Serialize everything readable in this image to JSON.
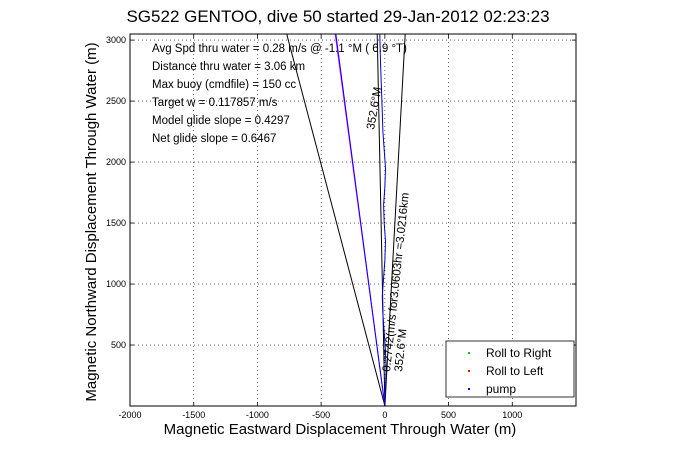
{
  "chart_data": {
    "type": "line",
    "title": "SG522 GENTOO, dive 50 started 29-Jan-2012 02:23:23",
    "xlabel": "Magnetic Eastward Displacement Through Water (m)",
    "ylabel": "Magnetic Northward Displacement Through Water (m)",
    "xlim": [
      -2000,
      1500
    ],
    "ylim": [
      0,
      3050
    ],
    "xticks": [
      -2000,
      -1500,
      -1000,
      -500,
      0,
      500,
      1000
    ],
    "yticks": [
      500,
      1000,
      1500,
      2000,
      2500,
      3000
    ],
    "grid": true,
    "legend_position": "bottom-right",
    "annotations": [
      "Avg Spd thru water =  0.28 m/s @   -1.1   °M (  6.9 °T)",
      "Distance thru water =  3.06 km",
      "Max buoy (cmdfile) = 150 cc",
      "Target w = 0.117857 m/s",
      "Model glide slope = 0.4297",
      "Net glide slope = 0.6467"
    ],
    "rotated_labels": {
      "heading_upper": "352.6°M",
      "track": "0.2742(m/s for3.0603hr =3.0216km",
      "heading_lower": "352.6°M"
    },
    "series": [
      {
        "name": "Roll to Right",
        "color": "#00cc00",
        "style": "dots"
      },
      {
        "name": "Roll to Left",
        "color": "#ff0000",
        "style": "dots"
      },
      {
        "name": "pump",
        "color": "#0000ff",
        "style": "dots"
      }
    ],
    "lines": [
      {
        "color": "#000000",
        "points": [
          [
            0,
            0
          ],
          [
            -770,
            3050
          ]
        ]
      },
      {
        "color": "#000000",
        "points": [
          [
            0,
            0
          ],
          [
            160,
            3050
          ]
        ]
      },
      {
        "color": "#000000",
        "points": [
          [
            0,
            0
          ],
          [
            -60,
            3050
          ]
        ]
      },
      {
        "color": "#ff00ff",
        "points": [
          [
            0,
            0
          ],
          [
            -390,
            3050
          ]
        ]
      },
      {
        "color": "#0000ff",
        "points": [
          [
            0,
            0
          ],
          [
            -385,
            3050
          ]
        ]
      },
      {
        "color": "#0000cc",
        "points": [
          [
            0,
            0
          ],
          [
            5,
            150
          ],
          [
            10,
            300
          ],
          [
            5,
            450
          ],
          [
            -5,
            600
          ],
          [
            -15,
            750
          ],
          [
            -20,
            900
          ],
          [
            -10,
            1050
          ],
          [
            0,
            1200
          ],
          [
            5,
            1350
          ],
          [
            -5,
            1500
          ],
          [
            -10,
            1650
          ],
          [
            0,
            1800
          ],
          [
            5,
            1950
          ],
          [
            -5,
            2100
          ],
          [
            -15,
            2250
          ],
          [
            -20,
            2400
          ],
          [
            -25,
            2550
          ],
          [
            -30,
            2700
          ],
          [
            -35,
            2850
          ],
          [
            -40,
            3050
          ]
        ]
      }
    ]
  }
}
